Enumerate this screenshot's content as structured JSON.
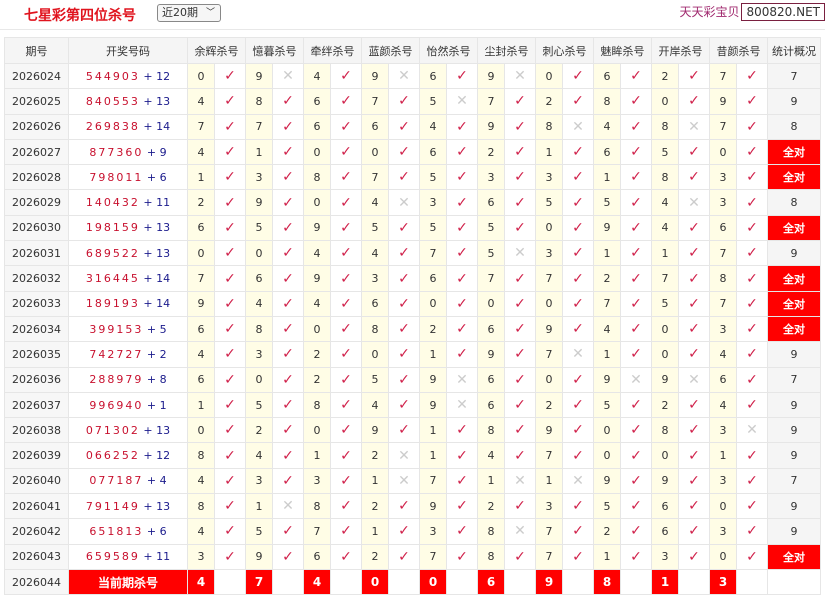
{
  "header": {
    "title": "七星彩第四位杀号",
    "period_select": "近20期",
    "brand": "天天彩宝贝",
    "site": "800820.NET"
  },
  "columns": [
    "期号",
    "开奖号码",
    "余辉杀号",
    "憶暮杀号",
    "牵绊杀号",
    "蓝颜杀号",
    "怡然杀号",
    "尘封杀号",
    "刺心杀号",
    "魅眸杀号",
    "开岸杀号",
    "昔颜杀号",
    "统计概况"
  ],
  "rows": [
    {
      "issue": "2026024",
      "draw": "544903",
      "extra": "12",
      "kills": [
        0,
        9,
        4,
        9,
        6,
        9,
        0,
        6,
        2,
        7
      ],
      "hits": [
        1,
        0,
        1,
        0,
        1,
        0,
        1,
        1,
        1,
        1
      ],
      "stat": "7"
    },
    {
      "issue": "2026025",
      "draw": "840553",
      "extra": "13",
      "kills": [
        4,
        8,
        6,
        7,
        5,
        7,
        2,
        8,
        0,
        9
      ],
      "hits": [
        1,
        1,
        1,
        1,
        0,
        1,
        1,
        1,
        1,
        1
      ],
      "stat": "9"
    },
    {
      "issue": "2026026",
      "draw": "269838",
      "extra": "14",
      "kills": [
        7,
        7,
        6,
        6,
        4,
        9,
        8,
        4,
        8,
        7
      ],
      "hits": [
        1,
        1,
        1,
        1,
        1,
        1,
        0,
        1,
        0,
        1
      ],
      "stat": "8"
    },
    {
      "issue": "2026027",
      "draw": "877360",
      "extra": "9",
      "kills": [
        4,
        1,
        0,
        0,
        6,
        2,
        1,
        6,
        5,
        0
      ],
      "hits": [
        1,
        1,
        1,
        1,
        1,
        1,
        1,
        1,
        1,
        1
      ],
      "stat": "全对"
    },
    {
      "issue": "2026028",
      "draw": "798011",
      "extra": "6",
      "kills": [
        1,
        3,
        8,
        7,
        5,
        3,
        3,
        1,
        8,
        3
      ],
      "hits": [
        1,
        1,
        1,
        1,
        1,
        1,
        1,
        1,
        1,
        1
      ],
      "stat": "全对"
    },
    {
      "issue": "2026029",
      "draw": "140432",
      "extra": "11",
      "kills": [
        2,
        9,
        0,
        4,
        3,
        6,
        5,
        5,
        4,
        3
      ],
      "hits": [
        1,
        1,
        1,
        0,
        1,
        1,
        1,
        1,
        0,
        1
      ],
      "stat": "8"
    },
    {
      "issue": "2026030",
      "draw": "198159",
      "extra": "13",
      "kills": [
        6,
        5,
        9,
        5,
        5,
        5,
        0,
        9,
        4,
        6
      ],
      "hits": [
        1,
        1,
        1,
        1,
        1,
        1,
        1,
        1,
        1,
        1
      ],
      "stat": "全对"
    },
    {
      "issue": "2026031",
      "draw": "689522",
      "extra": "13",
      "kills": [
        0,
        0,
        4,
        4,
        7,
        5,
        3,
        1,
        1,
        7
      ],
      "hits": [
        1,
        1,
        1,
        1,
        1,
        0,
        1,
        1,
        1,
        1
      ],
      "stat": "9"
    },
    {
      "issue": "2026032",
      "draw": "316445",
      "extra": "14",
      "kills": [
        7,
        6,
        9,
        3,
        6,
        7,
        7,
        2,
        7,
        8
      ],
      "hits": [
        1,
        1,
        1,
        1,
        1,
        1,
        1,
        1,
        1,
        1
      ],
      "stat": "全对"
    },
    {
      "issue": "2026033",
      "draw": "189193",
      "extra": "14",
      "kills": [
        9,
        4,
        4,
        6,
        0,
        0,
        0,
        7,
        5,
        7
      ],
      "hits": [
        1,
        1,
        1,
        1,
        1,
        1,
        1,
        1,
        1,
        1
      ],
      "stat": "全对"
    },
    {
      "issue": "2026034",
      "draw": "399153",
      "extra": "5",
      "kills": [
        6,
        8,
        0,
        8,
        2,
        6,
        9,
        4,
        0,
        3
      ],
      "hits": [
        1,
        1,
        1,
        1,
        1,
        1,
        1,
        1,
        1,
        1
      ],
      "stat": "全对"
    },
    {
      "issue": "2026035",
      "draw": "742727",
      "extra": "2",
      "kills": [
        4,
        3,
        2,
        0,
        1,
        9,
        7,
        1,
        0,
        4
      ],
      "hits": [
        1,
        1,
        1,
        1,
        1,
        1,
        0,
        1,
        1,
        1
      ],
      "stat": "9"
    },
    {
      "issue": "2026036",
      "draw": "288979",
      "extra": "8",
      "kills": [
        6,
        0,
        2,
        5,
        9,
        6,
        0,
        9,
        9,
        6
      ],
      "hits": [
        1,
        1,
        1,
        1,
        0,
        1,
        1,
        0,
        0,
        1
      ],
      "stat": "7"
    },
    {
      "issue": "2026037",
      "draw": "996940",
      "extra": "1",
      "kills": [
        1,
        5,
        8,
        4,
        9,
        6,
        2,
        5,
        2,
        4
      ],
      "hits": [
        1,
        1,
        1,
        1,
        0,
        1,
        1,
        1,
        1,
        1
      ],
      "stat": "9"
    },
    {
      "issue": "2026038",
      "draw": "071302",
      "extra": "13",
      "kills": [
        0,
        2,
        0,
        9,
        1,
        8,
        9,
        0,
        8,
        3
      ],
      "hits": [
        1,
        1,
        1,
        1,
        1,
        1,
        1,
        1,
        1,
        0
      ],
      "stat": "9"
    },
    {
      "issue": "2026039",
      "draw": "066252",
      "extra": "12",
      "kills": [
        8,
        4,
        1,
        2,
        1,
        4,
        7,
        0,
        0,
        1
      ],
      "hits": [
        1,
        1,
        1,
        0,
        1,
        1,
        1,
        1,
        1,
        1
      ],
      "stat": "9"
    },
    {
      "issue": "2026040",
      "draw": "077187",
      "extra": "4",
      "kills": [
        4,
        3,
        3,
        1,
        7,
        1,
        1,
        9,
        9,
        3
      ],
      "hits": [
        1,
        1,
        1,
        0,
        1,
        0,
        0,
        1,
        1,
        1
      ],
      "stat": "7"
    },
    {
      "issue": "2026041",
      "draw": "791149",
      "extra": "13",
      "kills": [
        8,
        1,
        8,
        2,
        9,
        2,
        3,
        5,
        6,
        0
      ],
      "hits": [
        1,
        0,
        1,
        1,
        1,
        1,
        1,
        1,
        1,
        1
      ],
      "stat": "9"
    },
    {
      "issue": "2026042",
      "draw": "651813",
      "extra": "6",
      "kills": [
        4,
        5,
        7,
        1,
        3,
        8,
        7,
        2,
        6,
        3
      ],
      "hits": [
        1,
        1,
        1,
        1,
        1,
        0,
        1,
        1,
        1,
        1
      ],
      "stat": "9"
    },
    {
      "issue": "2026043",
      "draw": "659589",
      "extra": "11",
      "kills": [
        3,
        9,
        6,
        2,
        7,
        8,
        7,
        1,
        3,
        0
      ],
      "hits": [
        1,
        1,
        1,
        1,
        1,
        1,
        1,
        1,
        1,
        1
      ],
      "stat": "全对"
    }
  ],
  "current": {
    "issue": "2026044",
    "label": "当前期杀号",
    "kills": [
      4,
      7,
      4,
      0,
      0,
      6,
      9,
      8,
      1,
      3
    ]
  },
  "icons": {
    "hit": "check-icon",
    "miss": "cross-icon"
  },
  "colors": {
    "accent": "#ff0000",
    "title": "#e0141e",
    "hit": "#d0204a",
    "miss": "#cccccc"
  }
}
